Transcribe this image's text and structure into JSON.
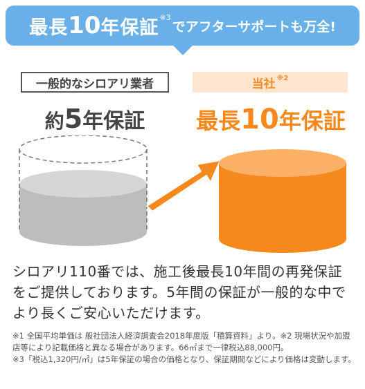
{
  "banner": {
    "part1": "最長",
    "number": "10",
    "part2": "年保証",
    "sup": "※3",
    "part3": "でアフターサポートも万全!"
  },
  "left": {
    "label": "一般的なシロアリ業者",
    "title_prefix": "約",
    "title_number": "5",
    "title_suffix": "年保証"
  },
  "right": {
    "label": "当社",
    "label_sup": "※2",
    "title_prefix": "最長",
    "title_number": "10",
    "title_suffix": "年保証"
  },
  "colors": {
    "banner": "#6ab0e8",
    "accent_orange": "#f5891e",
    "orange_light": "#fde6cf",
    "gray_cylinder": "#bdbdbd"
  },
  "body": "シロアリ110番では、施工後最長10年間の再発保証をご提供しております。5年間の保証が一般的な中でより長くご安心いただけます。",
  "notes": [
    "※1 全国平均単価は 般社団法人経済調査会2018年度版「積算資料」より。※2 現場状況や加盟店等により記載価格と異なる場合があります。66㎡まで一律税込88,000円。",
    "※3「税込1,320円/㎡」は5年保証の場合の価格となり、保証期間などにより価格は変動します。"
  ]
}
